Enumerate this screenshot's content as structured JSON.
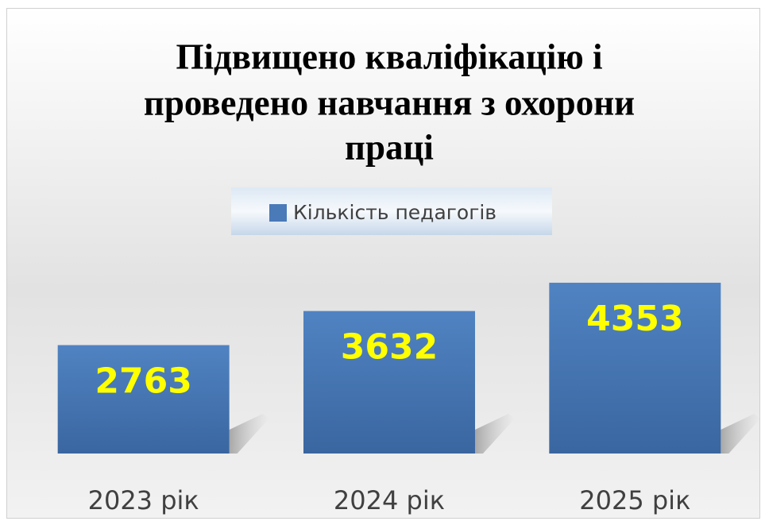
{
  "chart_data": {
    "type": "bar",
    "title_lines": [
      "Підвищено кваліфікацію і",
      "проведено навчання з охорони",
      "праці"
    ],
    "categories": [
      "2023 рік",
      "2024 рік",
      "2025 рік"
    ],
    "series": [
      {
        "name": "Кількість педагогів",
        "color": "#4a7ab8",
        "values": [
          2763,
          3632,
          4353
        ]
      }
    ],
    "ylim": [
      0,
      5000
    ]
  }
}
